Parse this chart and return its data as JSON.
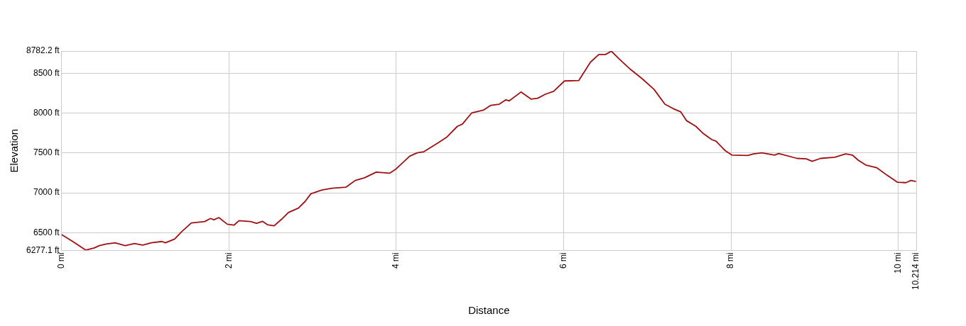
{
  "chart_data": {
    "type": "line",
    "xlabel": "Distance",
    "ylabel": "Elevation",
    "x": [
      0,
      0.13,
      0.29,
      0.39,
      0.45,
      0.53,
      0.64,
      0.76,
      0.87,
      0.97,
      1.07,
      1.2,
      1.24,
      1.35,
      1.44,
      1.55,
      1.71,
      1.78,
      1.82,
      1.88,
      1.98,
      2.06,
      2.12,
      2.26,
      2.33,
      2.4,
      2.46,
      2.54,
      2.63,
      2.71,
      2.83,
      2.91,
      2.98,
      3.11,
      3.23,
      3.4,
      3.51,
      3.62,
      3.76,
      3.92,
      3.99,
      4.16,
      4.25,
      4.33,
      4.5,
      4.6,
      4.73,
      4.79,
      4.9,
      5.04,
      5.13,
      5.23,
      5.31,
      5.35,
      5.49,
      5.61,
      5.69,
      5.78,
      5.88,
      6.01,
      6.18,
      6.32,
      6.42,
      6.5,
      6.57,
      6.69,
      6.8,
      6.94,
      7.08,
      7.21,
      7.31,
      7.4,
      7.47,
      7.58,
      7.67,
      7.77,
      7.82,
      7.93,
      8.01,
      8.2,
      8.27,
      8.37,
      8.52,
      8.57,
      8.79,
      8.9,
      8.97,
      9.07,
      9.24,
      9.37,
      9.45,
      9.52,
      9.61,
      9.74,
      9.86,
      9.99,
      10.09,
      10.15,
      10.21
    ],
    "series": [
      {
        "color": "#a01010",
        "values": [
          6475,
          6392,
          6280,
          6308,
          6336,
          6356,
          6372,
          6336,
          6364,
          6344,
          6372,
          6389,
          6372,
          6419,
          6517,
          6622,
          6639,
          6678,
          6661,
          6689,
          6606,
          6594,
          6650,
          6639,
          6617,
          6642,
          6600,
          6586,
          6669,
          6753,
          6808,
          6892,
          6989,
          7036,
          7058,
          7072,
          7156,
          7189,
          7261,
          7247,
          7294,
          7461,
          7503,
          7517,
          7628,
          7697,
          7836,
          7864,
          8003,
          8039,
          8100,
          8114,
          8169,
          8156,
          8267,
          8178,
          8189,
          8239,
          8275,
          8406,
          8411,
          8642,
          8739,
          8739,
          8780,
          8656,
          8550,
          8433,
          8300,
          8114,
          8058,
          8017,
          7906,
          7836,
          7744,
          7669,
          7650,
          7531,
          7475,
          7469,
          7489,
          7503,
          7475,
          7494,
          7433,
          7428,
          7397,
          7433,
          7447,
          7489,
          7475,
          7411,
          7350,
          7317,
          7225,
          7133,
          7128,
          7156,
          7142
        ]
      }
    ],
    "xlim": [
      0,
      10.214
    ],
    "xticks": [
      {
        "value": 0,
        "label": "0 mi"
      },
      {
        "value": 2,
        "label": "2 mi"
      },
      {
        "value": 4,
        "label": "4 mi"
      },
      {
        "value": 6,
        "label": "6 mi"
      },
      {
        "value": 8,
        "label": "8 mi"
      },
      {
        "value": 10,
        "label": "10 mi"
      },
      {
        "value": 10.214,
        "label": "10.214 mi"
      }
    ],
    "ylim": [
      6277.1,
      8782.2
    ],
    "yticks": [
      {
        "value": 6277.1,
        "label": "6277.1 ft"
      },
      {
        "value": 6500,
        "label": "6500 ft"
      },
      {
        "value": 7000,
        "label": "7000 ft"
      },
      {
        "value": 7500,
        "label": "7500 ft"
      },
      {
        "value": 8000,
        "label": "8000 ft"
      },
      {
        "value": 8500,
        "label": "8500 ft"
      },
      {
        "value": 8782.2,
        "label": "8782.2 ft"
      }
    ],
    "grid": true,
    "marker": "none",
    "line_style": "solid"
  }
}
